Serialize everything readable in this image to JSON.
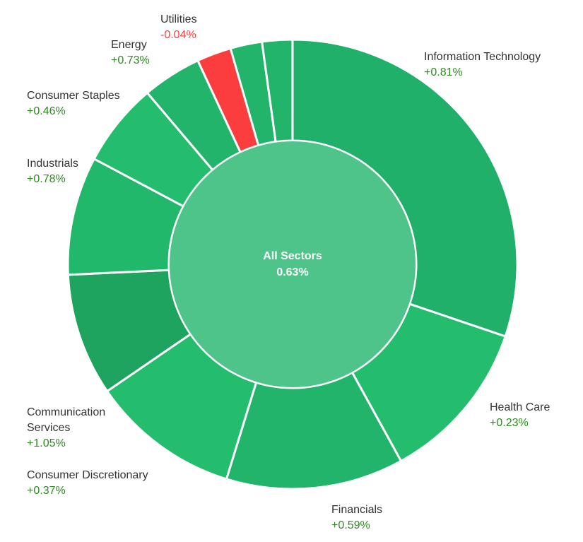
{
  "chart_data": {
    "type": "pie",
    "center": {
      "label": "All Sectors",
      "value": "0.63%"
    },
    "series": [
      {
        "name": "Information Technology",
        "change": "+0.81%",
        "weight": 30.5
      },
      {
        "name": "Health Care",
        "change": "+0.23%",
        "weight": 11.9
      },
      {
        "name": "Financials",
        "change": "+0.59%",
        "weight": 12.9
      },
      {
        "name": "Consumer Discretionary",
        "change": "+0.37%",
        "weight": 10.8
      },
      {
        "name": "Communication Services",
        "change": "+1.05%",
        "weight": 8.9
      },
      {
        "name": "Industrials",
        "change": "+0.78%",
        "weight": 8.6
      },
      {
        "name": "Consumer Staples",
        "change": "+0.46%",
        "weight": 6.1
      },
      {
        "name": "Energy",
        "change": "+0.73%",
        "weight": 4.3
      },
      {
        "name": "Utilities",
        "change": "-0.04%",
        "weight": 2.5
      },
      {
        "name": "",
        "change": "",
        "weight": 2.3
      },
      {
        "name": "",
        "change": "",
        "weight": 2.2
      }
    ],
    "colors": {
      "slices": [
        "#20b06a",
        "#24bd6e",
        "#22b46b",
        "#24bc6d",
        "#1ea45e",
        "#22b86c",
        "#24bc6d",
        "#22b46b",
        "#fc3d3d",
        "#22b46b",
        "#22b46b"
      ],
      "center": "#4ec48a",
      "positive_text": "#2e8b20",
      "negative_text": "#fc3d3d"
    }
  }
}
